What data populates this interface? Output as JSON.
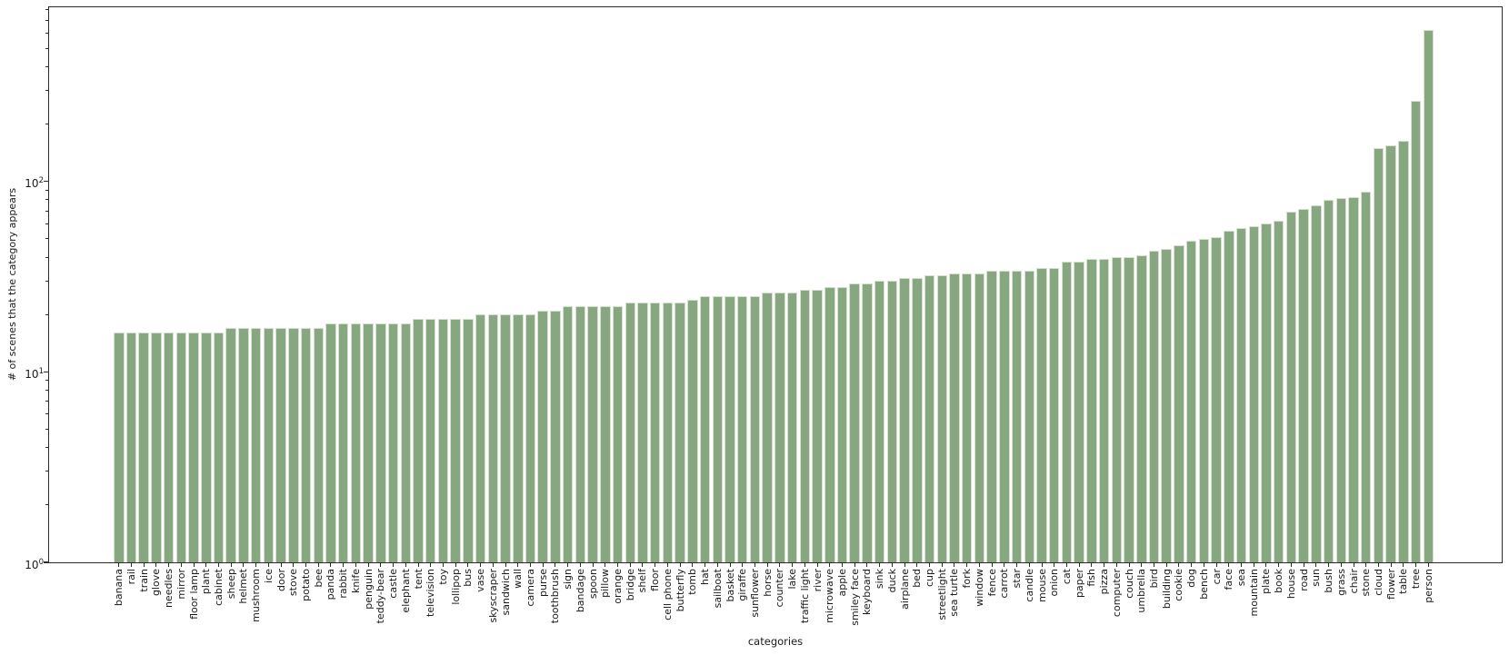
{
  "chart_data": {
    "type": "bar",
    "title": "",
    "xlabel": "categories",
    "ylabel": "# of scenes that the category appears",
    "yscale": "log",
    "ylim": [
      1,
      830
    ],
    "grid": false,
    "legend": "none",
    "bar_color": "#86a780",
    "bar_edge_color": "#d6e1cf",
    "spine_color": "#2b2b2b",
    "background_color": "#ffffff",
    "yticks": [
      {
        "base": "10",
        "exp": "0",
        "value": 1
      },
      {
        "base": "10",
        "exp": "1",
        "value": 10
      },
      {
        "base": "10",
        "exp": "2",
        "value": 100
      }
    ],
    "categories": [
      "banana",
      "rail",
      "train",
      "glove",
      "needles",
      "mirror",
      "floor lamp",
      "plant",
      "cabinet",
      "sheep",
      "helmet",
      "mushroom",
      "ice",
      "door",
      "stove",
      "potato",
      "bee",
      "panda",
      "rabbit",
      "knife",
      "penguin",
      "teddy-bear",
      "castle",
      "elephant",
      "tent",
      "television",
      "toy",
      "lollipop",
      "bus",
      "vase",
      "skyscraper",
      "sandwich",
      "wall",
      "camera",
      "purse",
      "toothbrush",
      "sign",
      "bandage",
      "spoon",
      "pillow",
      "orange",
      "bridge",
      "shelf",
      "floor",
      "cell phone",
      "butterfly",
      "tomb",
      "hat",
      "sailboat",
      "basket",
      "giraffe",
      "sunflower",
      "horse",
      "counter",
      "lake",
      "traffic light",
      "river",
      "microwave",
      "apple",
      "smiley face",
      "keyboard",
      "sink",
      "duck",
      "airplane",
      "bed",
      "cup",
      "streetlight",
      "sea turtle",
      "fork",
      "window",
      "fence",
      "carrot",
      "star",
      "candle",
      "mouse",
      "onion",
      "cat",
      "paper",
      "fish",
      "pizza",
      "computer",
      "couch",
      "umbrella",
      "bird",
      "building",
      "cookie",
      "dog",
      "bench",
      "car",
      "face",
      "sea",
      "mountain",
      "plate",
      "book",
      "house",
      "road",
      "sun",
      "bush",
      "grass",
      "chair",
      "stone",
      "cloud",
      "flower",
      "table",
      "tree",
      "person"
    ],
    "values": [
      16,
      16,
      16,
      16,
      16,
      16,
      16,
      16,
      16,
      17,
      17,
      17,
      17,
      17,
      17,
      17,
      17,
      18,
      18,
      18,
      18,
      18,
      18,
      18,
      19,
      19,
      19,
      19,
      19,
      20,
      20,
      20,
      20,
      20,
      21,
      21,
      22,
      22,
      22,
      22,
      22,
      23,
      23,
      23,
      23,
      23,
      24,
      25,
      25,
      25,
      25,
      25,
      26,
      26,
      26,
      27,
      27,
      28,
      28,
      29,
      29,
      30,
      30,
      31,
      31,
      32,
      32,
      33,
      33,
      33,
      34,
      34,
      34,
      34,
      35,
      35,
      38,
      38,
      39,
      39,
      40,
      40,
      41,
      43,
      44,
      46,
      49,
      50,
      51,
      55,
      57,
      58,
      60,
      62,
      69,
      72,
      75,
      80,
      82,
      83,
      88,
      150,
      155,
      164,
      265,
      620
    ]
  }
}
